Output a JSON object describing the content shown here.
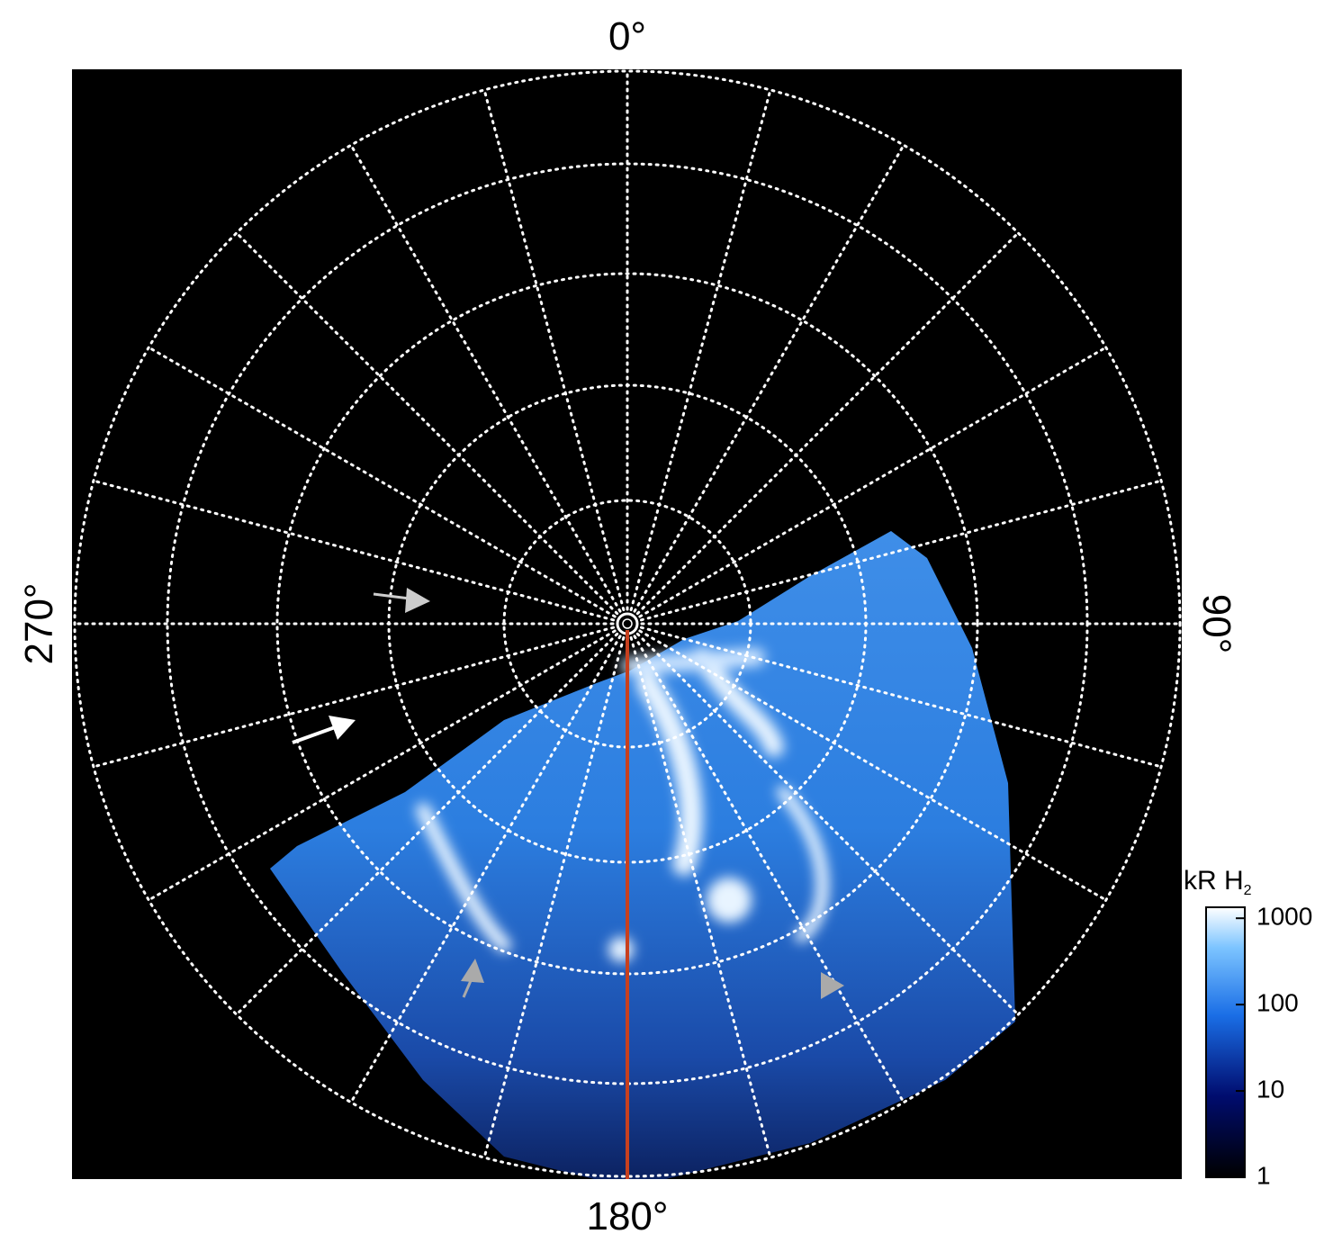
{
  "labels": {
    "top": "0°",
    "bottom": "180°",
    "left": "270°",
    "right": "90°"
  },
  "colorbar": {
    "title": "kR H",
    "title_subscript": "2",
    "scale": "log",
    "lim": [
      1,
      1340
    ],
    "ticks": [
      1,
      10,
      100,
      1000
    ]
  }
}
